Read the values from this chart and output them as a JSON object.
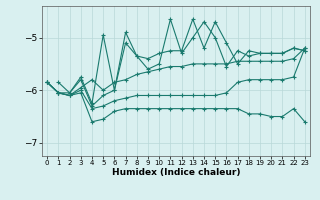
{
  "xlabel": "Humidex (Indice chaleur)",
  "bg_color": "#d9f0f0",
  "line_color": "#1a7a6e",
  "grid_color": "#b8d8d8",
  "ylim": [
    -7.25,
    -4.4
  ],
  "xlim": [
    -0.5,
    23.5
  ],
  "yticks": [
    -7,
    -6,
    -5
  ],
  "xticks": [
    0,
    1,
    2,
    3,
    4,
    5,
    6,
    7,
    8,
    9,
    10,
    11,
    12,
    13,
    14,
    15,
    16,
    17,
    18,
    19,
    20,
    21,
    22,
    23
  ],
  "series": {
    "spiky1": {
      "x": [
        1,
        2,
        3,
        4,
        5,
        6,
        7,
        8,
        9,
        10,
        11,
        12,
        13,
        14,
        15,
        16,
        17,
        18,
        19,
        20,
        21,
        22,
        23
      ],
      "y": [
        -5.85,
        -6.05,
        -5.75,
        -6.25,
        -4.95,
        -6.0,
        -5.1,
        -5.35,
        -5.4,
        -5.3,
        -5.25,
        -5.25,
        -4.65,
        -5.2,
        -4.7,
        -5.1,
        -5.5,
        -5.25,
        -5.3,
        -5.3,
        -5.3,
        -5.2,
        -5.25
      ]
    },
    "spiky2": {
      "x": [
        0,
        1,
        2,
        3,
        4,
        5,
        6,
        7,
        8,
        9,
        10,
        11,
        12,
        13,
        14,
        15,
        16,
        17,
        18,
        19,
        20,
        21,
        22,
        23
      ],
      "y": [
        -5.85,
        -6.05,
        -6.05,
        -5.8,
        -6.3,
        -6.1,
        -6.0,
        -4.9,
        -5.35,
        -5.6,
        -5.5,
        -4.65,
        -5.3,
        -5.0,
        -4.7,
        -5.0,
        -5.55,
        -5.25,
        -5.35,
        -5.3,
        -5.3,
        -5.3,
        -5.2,
        -5.25
      ]
    },
    "smooth_upper": {
      "x": [
        0,
        1,
        2,
        3,
        4,
        5,
        6,
        7,
        8,
        9,
        10,
        11,
        12,
        13,
        14,
        15,
        16,
        17,
        18,
        19,
        20,
        21,
        22,
        23
      ],
      "y": [
        -5.85,
        -6.05,
        -6.1,
        -5.95,
        -5.8,
        -6.0,
        -5.85,
        -5.8,
        -5.7,
        -5.65,
        -5.6,
        -5.55,
        -5.55,
        -5.5,
        -5.5,
        -5.5,
        -5.5,
        -5.45,
        -5.45,
        -5.45,
        -5.45,
        -5.45,
        -5.4,
        -5.2
      ]
    },
    "smooth_lower": {
      "x": [
        0,
        1,
        2,
        3,
        4,
        5,
        6,
        7,
        8,
        9,
        10,
        11,
        12,
        13,
        14,
        15,
        16,
        17,
        18,
        19,
        20,
        21,
        22,
        23
      ],
      "y": [
        -5.85,
        -6.05,
        -6.1,
        -6.0,
        -6.35,
        -6.3,
        -6.2,
        -6.15,
        -6.1,
        -6.1,
        -6.1,
        -6.1,
        -6.1,
        -6.1,
        -6.1,
        -6.1,
        -6.05,
        -5.85,
        -5.8,
        -5.8,
        -5.8,
        -5.8,
        -5.75,
        -5.2
      ]
    },
    "bottom": {
      "x": [
        0,
        1,
        2,
        3,
        4,
        5,
        6,
        7,
        8,
        9,
        10,
        11,
        12,
        13,
        14,
        15,
        16,
        17,
        18,
        19,
        20,
        21,
        22,
        23
      ],
      "y": [
        -5.85,
        -6.05,
        -6.1,
        -6.05,
        -6.6,
        -6.55,
        -6.4,
        -6.35,
        -6.35,
        -6.35,
        -6.35,
        -6.35,
        -6.35,
        -6.35,
        -6.35,
        -6.35,
        -6.35,
        -6.35,
        -6.45,
        -6.45,
        -6.5,
        -6.5,
        -6.35,
        -6.6
      ]
    }
  }
}
